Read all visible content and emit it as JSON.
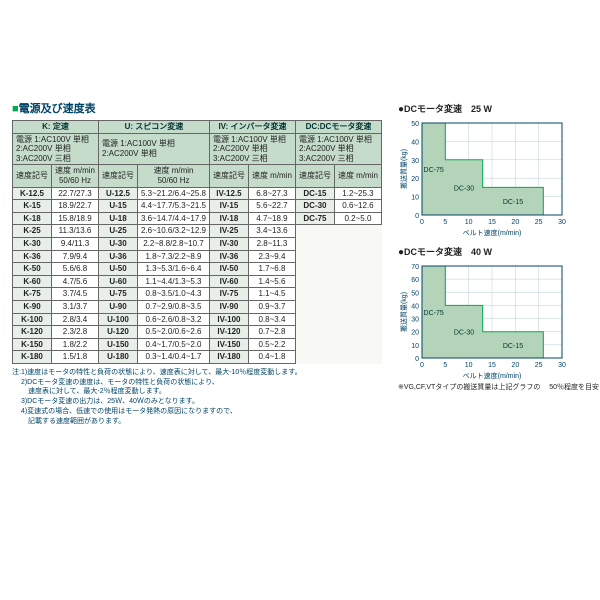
{
  "title": "電源及び速度表",
  "sections": [
    {
      "head": "K: 定速",
      "sub": "電源 1:AC100V 単相\n2:AC200V 単相\n3:AC200V 三相",
      "col1": "速度記号",
      "col2": "速度 m/min\n50/60 Hz"
    },
    {
      "head": "U: スピコン変速",
      "sub": "電源 1:AC100V 単相\n2:AC200V 単相",
      "col1": "速度記号",
      "col2": "速度 m/min\n50/60 Hz"
    },
    {
      "head": "IV: インバータ変速",
      "sub": "電源 1:AC100V 単相\n2:AC200V 単相\n3:AC200V 三相",
      "col1": "速度記号",
      "col2": "速度 m/min"
    },
    {
      "head": "DC:DCモータ変速",
      "sub": "電源 1:AC100V 単相\n2:AC200V 単相\n3:AC200V 三相",
      "col1": "速度記号",
      "col2": "速度 m/min"
    }
  ],
  "rows": [
    [
      "K-12.5",
      "22.7/27.3",
      "U-12.5",
      "5.3~21.2/6.4~25.8",
      "IV-12.5",
      "6.8~27.3",
      "DC-15",
      "1.2~25.3"
    ],
    [
      "K-15",
      "18.9/22.7",
      "U-15",
      "4.4~17.7/5.3~21.5",
      "IV-15",
      "5.6~22.7",
      "DC-30",
      "0.6~12.6"
    ],
    [
      "K-18",
      "15.8/18.9",
      "U-18",
      "3.6~14.7/4.4~17.9",
      "IV-18",
      "4.7~18.9",
      "DC-75",
      "0.2~5.0"
    ],
    [
      "K-25",
      "11.3/13.6",
      "U-25",
      "2.6~10.6/3.2~12.9",
      "IV-25",
      "3.4~13.6",
      "",
      ""
    ],
    [
      "K-30",
      "9.4/11.3",
      "U-30",
      "2.2~8.8/2.8~10.7",
      "IV-30",
      "2.8~11.3",
      "",
      ""
    ],
    [
      "K-36",
      "7.9/9.4",
      "U-36",
      "1.8~7.3/2.2~8.9",
      "IV-36",
      "2.3~9.4",
      "",
      ""
    ],
    [
      "K-50",
      "5.6/6.8",
      "U-50",
      "1.3~5.3/1.6~6.4",
      "IV-50",
      "1.7~6.8",
      "",
      ""
    ],
    [
      "K-60",
      "4.7/5.6",
      "U-60",
      "1.1~4.4/1.3~5.3",
      "IV-60",
      "1.4~5.6",
      "",
      ""
    ],
    [
      "K-75",
      "3.7/4.5",
      "U-75",
      "0.8~3.5/1.0~4.3",
      "IV-75",
      "1.1~4.5",
      "",
      ""
    ],
    [
      "K-90",
      "3.1/3.7",
      "U-90",
      "0.7~2.9/0.8~3.5",
      "IV-90",
      "0.9~3.7",
      "",
      ""
    ],
    [
      "K-100",
      "2.8/3.4",
      "U-100",
      "0.6~2.6/0.8~3.2",
      "IV-100",
      "0.8~3.4",
      "",
      ""
    ],
    [
      "K-120",
      "2.3/2.8",
      "U-120",
      "0.5~2.0/0.6~2.6",
      "IV-120",
      "0.7~2.8",
      "",
      ""
    ],
    [
      "K-150",
      "1.8/2.2",
      "U-150",
      "0.4~1.7/0.5~2.0",
      "IV-150",
      "0.5~2.2",
      "",
      ""
    ],
    [
      "K-180",
      "1.5/1.8",
      "U-180",
      "0.3~1.4/0.4~1.7",
      "IV-180",
      "0.4~1.8",
      "",
      ""
    ]
  ],
  "notes": [
    "注:1)速度はモータの特性と負荷の状態により、速度表に対して、最大-10％程度変動します。",
    "　 2)DCモータ変速の速度は、モータの特性と負荷の状態により、",
    "　 　速度表に対して、最大-2％程度変動します。",
    "　 3)DCモータ変速の出力は、25Ｗ、40Ｗのみとなります。",
    "　 4)変速式の場合、低速での使用はモータ発熱の原因になりますので、",
    "　 　記載する速度範囲があります。"
  ],
  "chart1": {
    "title": "DCモータ変速　25 W",
    "xlabel": "ベルト速度(m/min)",
    "ylabel": "搬送質量(kg)",
    "xlim": [
      0,
      30
    ],
    "ylim": [
      0,
      50
    ],
    "xticks": [
      0,
      5,
      10,
      15,
      20,
      25,
      30
    ],
    "yticks": [
      0,
      10,
      20,
      30,
      40,
      50
    ],
    "steps": [
      {
        "label": "DC-75",
        "x": [
          0,
          5
        ],
        "y": 50
      },
      {
        "label": "DC-30",
        "x": [
          5,
          13
        ],
        "y": 30
      },
      {
        "label": "DC-15",
        "x": [
          13,
          26
        ],
        "y": 15
      }
    ],
    "fill": "#b3d4b8",
    "line": "#0a5",
    "grid": "#b8cfd4"
  },
  "chart2": {
    "title": "DCモータ変速　40 W",
    "xlabel": "ベルト速度(m/min)",
    "ylabel": "搬送質量(kg)",
    "xlim": [
      0,
      30
    ],
    "ylim": [
      0,
      70
    ],
    "xticks": [
      0,
      5,
      10,
      15,
      20,
      25,
      30
    ],
    "yticks": [
      0,
      10,
      20,
      30,
      40,
      50,
      60,
      70
    ],
    "steps": [
      {
        "label": "DC-75",
        "x": [
          0,
          5
        ],
        "y": 70
      },
      {
        "label": "DC-30",
        "x": [
          5,
          13
        ],
        "y": 40
      },
      {
        "label": "DC-15",
        "x": [
          13,
          26
        ],
        "y": 20
      }
    ],
    "fill": "#b3d4b8",
    "line": "#0a5",
    "grid": "#b8cfd4"
  },
  "chart_note": "※VG,CF,VTタイプの搬送質量は上記グラフの\n　50％程度を目安としてください。"
}
